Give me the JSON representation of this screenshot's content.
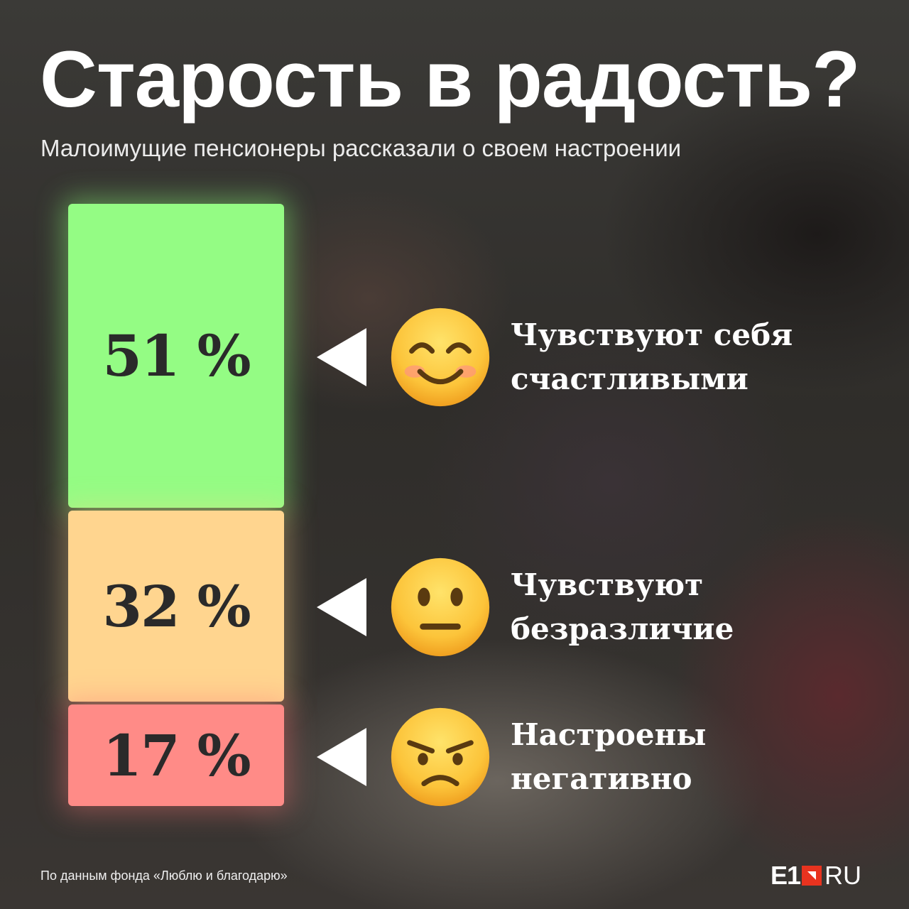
{
  "title": "Старость в радость?",
  "subtitle": "Малоимущие пенсионеры рассказали о своем настроении",
  "footer": "По данным фонда «Люблю и благодарю»",
  "logo": {
    "main": "E1",
    "suffix": "RU"
  },
  "colors": {
    "happy": "#94fc84",
    "neutral": "#ffd58f",
    "negative": "#ff8b87",
    "logo_accent": "#e8331f"
  },
  "chart_data": {
    "type": "bar",
    "stacked": true,
    "orientation": "vertical",
    "unit": "%",
    "categories": [
      "Чувствуют себя счастливыми",
      "Чувствуют безразличие",
      "Настроены негативно"
    ],
    "values": [
      51,
      32,
      17
    ],
    "data_labels": [
      "51 %",
      "32 %",
      "17 %"
    ],
    "series": [
      {
        "label_lines": [
          "Чувствуют себя",
          "счастливыми"
        ],
        "value": 51,
        "label": "51 %",
        "color": "#94fc84",
        "emoji": "smiling-face-with-smiling-eyes-icon"
      },
      {
        "label_lines": [
          "Чувствуют",
          "безразличие"
        ],
        "value": 32,
        "label": "32 %",
        "color": "#ffd58f",
        "emoji": "neutral-face-icon"
      },
      {
        "label_lines": [
          "Настроены",
          "негативно"
        ],
        "value": 17,
        "label": "17 %",
        "color": "#ff8b87",
        "emoji": "angry-face-icon"
      }
    ],
    "title": "Старость в радость?",
    "subtitle": "Малоимущие пенсионеры рассказали о своем настроении"
  }
}
